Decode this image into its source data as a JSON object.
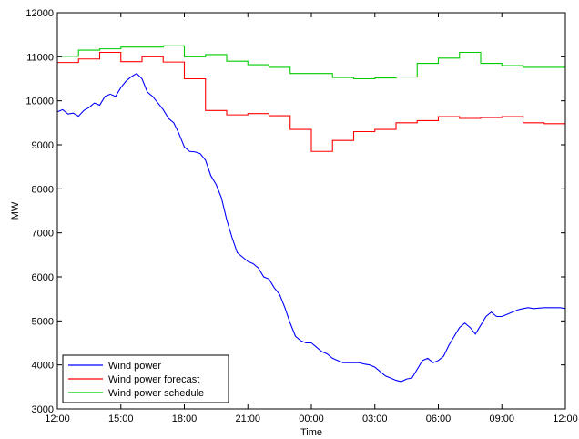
{
  "chart_data": {
    "type": "line",
    "xlabel": "Time",
    "ylabel": "MW",
    "xlim": [
      0,
      24
    ],
    "ylim": [
      3000,
      12000
    ],
    "x_ticks": [
      0,
      3,
      6,
      9,
      12,
      15,
      18,
      21,
      24
    ],
    "x_tick_labels": [
      "12:00",
      "15:00",
      "18:00",
      "21:00",
      "00:00",
      "03:00",
      "06:00",
      "09:00",
      "12:00"
    ],
    "y_ticks": [
      3000,
      4000,
      5000,
      6000,
      7000,
      8000,
      9000,
      10000,
      11000,
      12000
    ],
    "y_tick_labels": [
      "3000",
      "4000",
      "5000",
      "6000",
      "7000",
      "8000",
      "9000",
      "10000",
      "11000",
      "12000"
    ],
    "grid": false,
    "legend_position": "bottom-left",
    "series": [
      {
        "name": "Wind power",
        "color": "#0000ff",
        "step": false,
        "x": [
          0,
          0.25,
          0.5,
          0.75,
          1.0,
          1.25,
          1.5,
          1.75,
          2.0,
          2.25,
          2.5,
          2.75,
          3.0,
          3.25,
          3.5,
          3.75,
          4.0,
          4.25,
          4.5,
          4.75,
          5.0,
          5.25,
          5.5,
          5.75,
          6.0,
          6.25,
          6.5,
          6.75,
          7.0,
          7.25,
          7.5,
          7.75,
          8.0,
          8.25,
          8.5,
          8.75,
          9.0,
          9.25,
          9.5,
          9.75,
          10.0,
          10.25,
          10.5,
          10.75,
          11.0,
          11.25,
          11.5,
          11.75,
          12.0,
          12.25,
          12.5,
          12.75,
          13.0,
          13.25,
          13.5,
          13.75,
          14.0,
          14.25,
          14.5,
          14.75,
          15.0,
          15.25,
          15.5,
          15.75,
          16.0,
          16.25,
          16.5,
          16.75,
          17.0,
          17.25,
          17.5,
          17.75,
          18.0,
          18.25,
          18.5,
          18.75,
          19.0,
          19.25,
          19.5,
          19.75,
          20.0,
          20.25,
          20.5,
          20.75,
          21.0,
          21.25,
          21.5,
          21.75,
          22.0,
          22.25,
          22.5,
          22.75,
          23.0,
          23.25,
          23.5,
          23.75,
          24.0
        ],
        "y": [
          9750,
          9800,
          9700,
          9720,
          9650,
          9780,
          9850,
          9950,
          9900,
          10100,
          10150,
          10100,
          10300,
          10450,
          10550,
          10620,
          10500,
          10200,
          10100,
          9950,
          9800,
          9600,
          9500,
          9250,
          8950,
          8850,
          8840,
          8800,
          8650,
          8300,
          8100,
          7800,
          7300,
          6900,
          6550,
          6450,
          6350,
          6300,
          6200,
          6000,
          5950,
          5750,
          5600,
          5300,
          4950,
          4650,
          4550,
          4500,
          4500,
          4400,
          4300,
          4250,
          4150,
          4100,
          4050,
          4050,
          4050,
          4050,
          4020,
          4000,
          3950,
          3850,
          3750,
          3700,
          3650,
          3620,
          3680,
          3700,
          3900,
          4100,
          4150,
          4050,
          4100,
          4200,
          4450,
          4650,
          4850,
          4950,
          4850,
          4700,
          4900,
          5100,
          5200,
          5100,
          5100,
          5150,
          5200,
          5250,
          5280,
          5300,
          5280,
          5290,
          5300,
          5300,
          5300,
          5300,
          5280
        ]
      },
      {
        "name": "Wind power forecast",
        "color": "#ff0000",
        "step": true,
        "x": [
          0,
          1,
          2,
          3,
          4,
          5,
          6,
          7,
          8,
          9,
          10,
          11,
          12,
          13,
          14,
          15,
          16,
          17,
          18,
          19,
          20,
          21,
          22,
          23,
          24
        ],
        "y": [
          10870,
          10950,
          11100,
          10890,
          11000,
          10880,
          10500,
          9780,
          9680,
          9710,
          9660,
          9350,
          8850,
          9100,
          9300,
          9350,
          9500,
          9550,
          9640,
          9600,
          9620,
          9640,
          9500,
          9480,
          9480
        ]
      },
      {
        "name": "Wind power schedule",
        "color": "#00cc00",
        "step": true,
        "x": [
          0,
          1,
          2,
          3,
          4,
          5,
          6,
          7,
          8,
          9,
          10,
          11,
          12,
          13,
          14,
          15,
          16,
          17,
          18,
          19,
          20,
          21,
          22,
          23,
          24
        ],
        "y": [
          11010,
          11150,
          11180,
          11220,
          11220,
          11250,
          11000,
          11050,
          10900,
          10820,
          10760,
          10620,
          10620,
          10530,
          10500,
          10520,
          10540,
          10850,
          10970,
          11100,
          10850,
          10800,
          10760,
          10760,
          10760
        ]
      }
    ]
  }
}
